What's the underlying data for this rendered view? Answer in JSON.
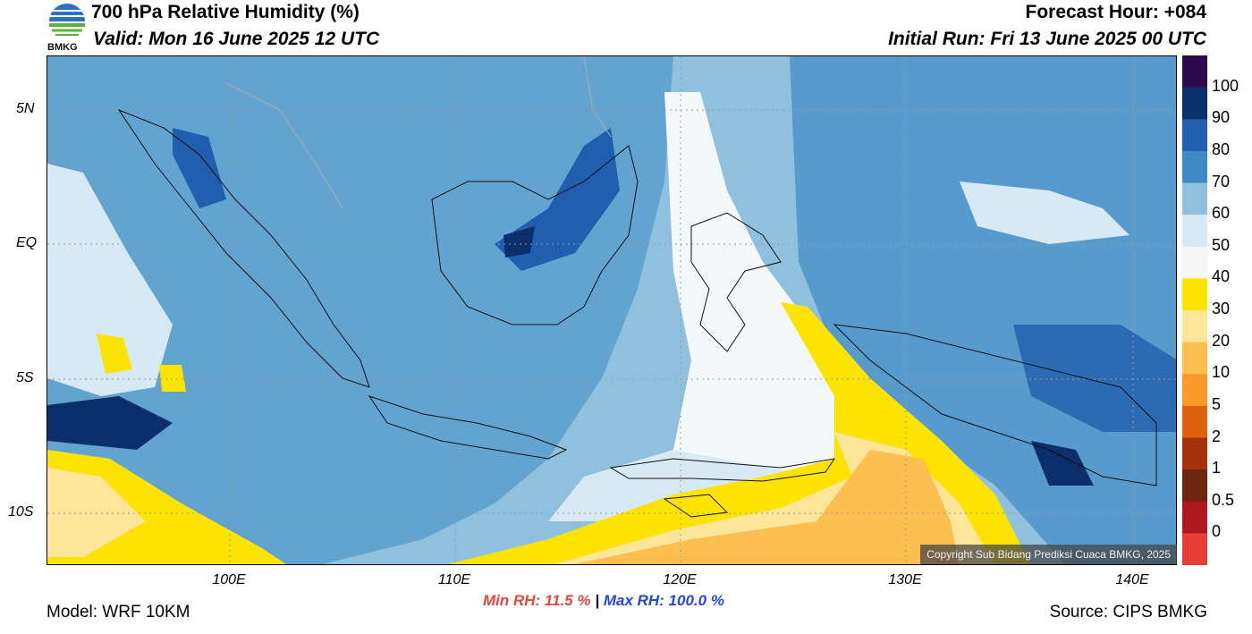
{
  "header": {
    "title": "700 hPa Relative Humidity (%)",
    "valid": "Valid: Mon 16 June 2025 12 UTC",
    "forecast_hour": "Forecast Hour: +084",
    "initial_run": "Initial Run: Fri 13 June 2025 00 UTC"
  },
  "logo": {
    "text": "BMKG"
  },
  "map": {
    "lat_labels": [
      "5N",
      "EQ",
      "5S",
      "10S"
    ],
    "lon_labels": [
      "100E",
      "110E",
      "120E",
      "130E",
      "140E"
    ],
    "copyright": "Copyright Sub Bidang Prediksi Cuaca BMKG, 2025"
  },
  "colorbar": {
    "labels": [
      "100",
      "90",
      "80",
      "70",
      "60",
      "50",
      "40",
      "30",
      "20",
      "10",
      "5",
      "2",
      "1",
      "0.5",
      "0"
    ],
    "colors": [
      "#2d0a4e",
      "#0b2f6a",
      "#1f5fae",
      "#3f8ac4",
      "#8fc1de",
      "#d6e9f4",
      "#f7f7f7",
      "#fde300",
      "#fde69a",
      "#fcbf50",
      "#f99a2a",
      "#de5f0c",
      "#a3330b",
      "#6e2410",
      "#b0171e",
      "#e83e33"
    ]
  },
  "footer": {
    "model": "Model: WRF 10KM",
    "source": "Source: CIPS BMKG",
    "min_rh": "Min RH:  11.5 %",
    "separator": "|",
    "max_rh": "Max RH: 100.0 %"
  }
}
